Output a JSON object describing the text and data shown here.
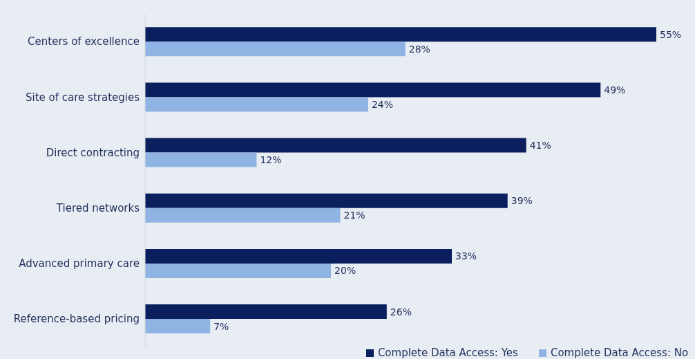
{
  "chart_data": {
    "type": "bar",
    "orientation": "horizontal",
    "categories": [
      "Centers of excellence",
      "Site of care strategies",
      "Direct contracting",
      "Tiered networks",
      "Advanced primary care",
      "Reference-based pricing"
    ],
    "series": [
      {
        "name": "Complete Data Access: Yes",
        "color": "#0b1f5e",
        "values": [
          55,
          49,
          41,
          39,
          33,
          26
        ],
        "value_labels": [
          "55%",
          "49%",
          "41%",
          "39%",
          "33%",
          "26%"
        ]
      },
      {
        "name": "Complete Data Access: No",
        "color": "#8fb3e2",
        "values": [
          28,
          24,
          12,
          21,
          20,
          7
        ],
        "value_labels": [
          "28%",
          "24%",
          "12%",
          "21%",
          "20%",
          "7%"
        ]
      }
    ],
    "legend": "bottom"
  }
}
